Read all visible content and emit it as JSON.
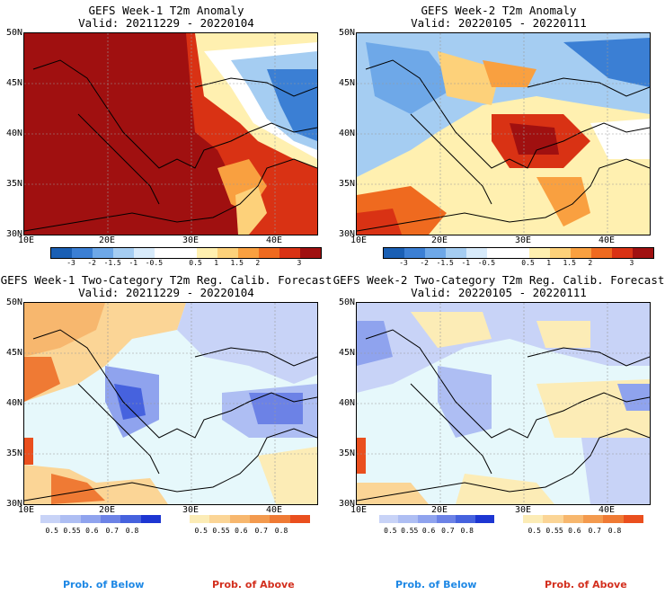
{
  "panels": [
    {
      "title": "GEFS Week-1 T2m Anomaly",
      "valid": "Valid: 20211229 - 20220104"
    },
    {
      "title": "GEFS Week-2 T2m Anomaly",
      "valid": "Valid: 20220105 - 20220111"
    },
    {
      "title": "GEFS Week-1 Two-Category T2m Reg. Calib. Forecast",
      "valid": "Valid: 20211229 - 20220104"
    },
    {
      "title": "GEFS Week-2 Two-Category T2m Reg. Calib. Forecast",
      "valid": "Valid: 20220105 - 20220111"
    }
  ],
  "axes": {
    "lat_labels": [
      "50N",
      "45N",
      "40N",
      "35N",
      "30N"
    ],
    "lon_labels": [
      "10E",
      "20E",
      "30E",
      "40E"
    ]
  },
  "anomaly_colorbar": {
    "ticks": [
      "-3",
      "-2",
      "-1.5",
      "-1",
      "-0.5",
      "0.5",
      "1",
      "1.5",
      "2",
      "3"
    ],
    "colors": [
      "#1a5fb4",
      "#3b7fd4",
      "#6ea8e8",
      "#a5cdf2",
      "#d8ebfb",
      "#ffffff",
      "#ffffff",
      "#fff0b0",
      "#fdd17a",
      "#f9a040",
      "#ef6a1f",
      "#d93214",
      "#a01010"
    ]
  },
  "prob_colorbar": {
    "ticks": [
      "0.5",
      "0.55",
      "0.6",
      "0.7",
      "0.8"
    ],
    "below_colors": [
      "#c8d3f7",
      "#aebef3",
      "#8fa3ee",
      "#6c82e6",
      "#4662de",
      "#1d36d2"
    ],
    "above_colors": [
      "#fcecb6",
      "#fbd596",
      "#f7b76e",
      "#f39a4e",
      "#ef7a34",
      "#ea4f1e"
    ]
  },
  "legend": {
    "below": "Prob. of Below",
    "above": "Prob. of Above",
    "below_color": "#1e88e5",
    "above_color": "#d32f1e"
  },
  "colors": {
    "sea": "#e6f8fb",
    "land_neutral": "#ffffff"
  }
}
